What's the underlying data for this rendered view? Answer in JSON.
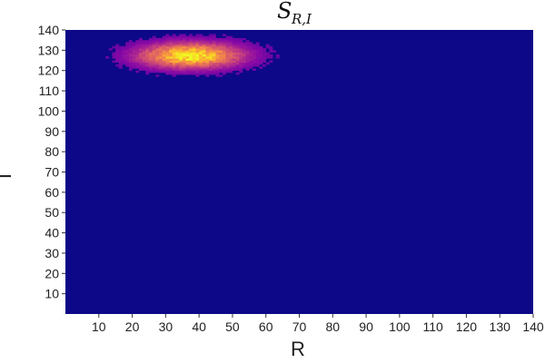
{
  "chart_data": {
    "type": "heatmap",
    "title_main": "S",
    "title_subscript": "R,I",
    "xlabel": "R",
    "ylabel": "I",
    "xlim": [
      0,
      140
    ],
    "ylim": [
      0,
      140
    ],
    "x_ticks": [
      10,
      20,
      30,
      40,
      50,
      60,
      70,
      80,
      90,
      100,
      110,
      120,
      130,
      140
    ],
    "y_ticks": [
      10,
      20,
      30,
      40,
      50,
      60,
      70,
      80,
      90,
      100,
      110,
      120,
      130,
      140
    ],
    "colormap": "plasma",
    "background_color": "#0d0887",
    "hotspot": {
      "center_R": 38,
      "center_I": 128,
      "spread_R": 11,
      "spread_I": 4.5,
      "R_range": [
        10,
        74
      ],
      "I_range": [
        114,
        138
      ]
    }
  }
}
